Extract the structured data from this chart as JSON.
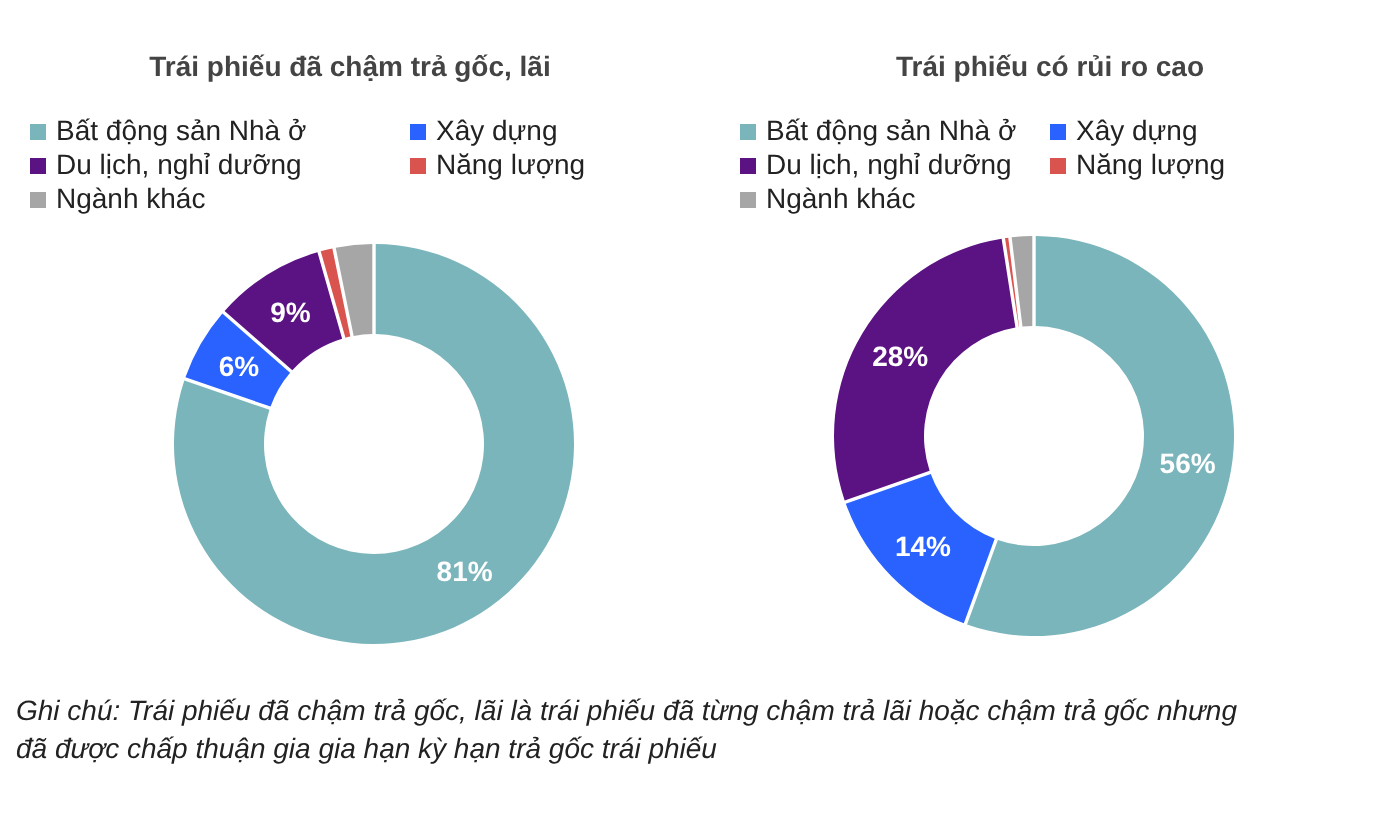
{
  "chart_data": [
    {
      "type": "donut",
      "title": "Trái phiếu đã chậm trả gốc, lãi",
      "categories": [
        "Bất động sản Nhà ở",
        "Xây dựng",
        "Du lịch, nghỉ dưỡng",
        "Năng lượng",
        "Ngành khác"
      ],
      "values": [
        81,
        6,
        9,
        1,
        3
      ],
      "value_labels": [
        "81%",
        "6%",
        "9%",
        null,
        null
      ],
      "colors": [
        "#7ab5bb",
        "#2962ff",
        "#5b1283",
        "#d9534f",
        "#a6a6a6"
      ],
      "legend": "top"
    },
    {
      "type": "donut",
      "title": "Trái phiếu có rủi ro cao",
      "categories": [
        "Bất động sản Nhà ở",
        "Xây dựng",
        "Du lịch, nghỉ dưỡng",
        "Năng lượng",
        "Ngành khác"
      ],
      "values": [
        56,
        14,
        28,
        0.3,
        1.7
      ],
      "value_labels": [
        "56%",
        "14%",
        "28%",
        null,
        null
      ],
      "colors": [
        "#7ab5bb",
        "#2962ff",
        "#5b1283",
        "#d9534f",
        "#a6a6a6"
      ],
      "legend": "top",
      "annotations": [
        "Ghi chú: Trái phiếu đã chậm trả gốc, lãi là trái phiếu đã từng chậm trả lãi hoặc chậm trả gốc nhưng",
        "đã được chấp thuận gia gia hạn kỳ hạn trả gốc trái phiếu"
      ]
    }
  ]
}
